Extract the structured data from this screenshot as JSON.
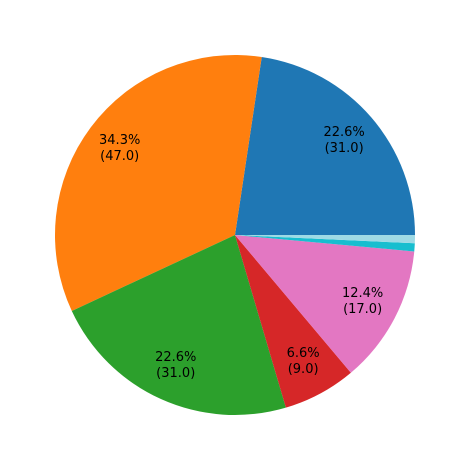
{
  "chart_data": {
    "type": "pie",
    "values": [
      31,
      47,
      31,
      9,
      17,
      1,
      1
    ],
    "value_labels": [
      "22.6%\n(31.0)",
      "34.3%\n(47.0)",
      "22.6%\n(31.0)",
      "6.6%\n(9.0)",
      "12.4%\n(17.0)",
      null,
      null
    ],
    "colors": [
      "#1f77b4",
      "#ff7f0e",
      "#2ca02c",
      "#d62728",
      "#e377c2",
      "#17becf",
      "#9edae5"
    ]
  }
}
